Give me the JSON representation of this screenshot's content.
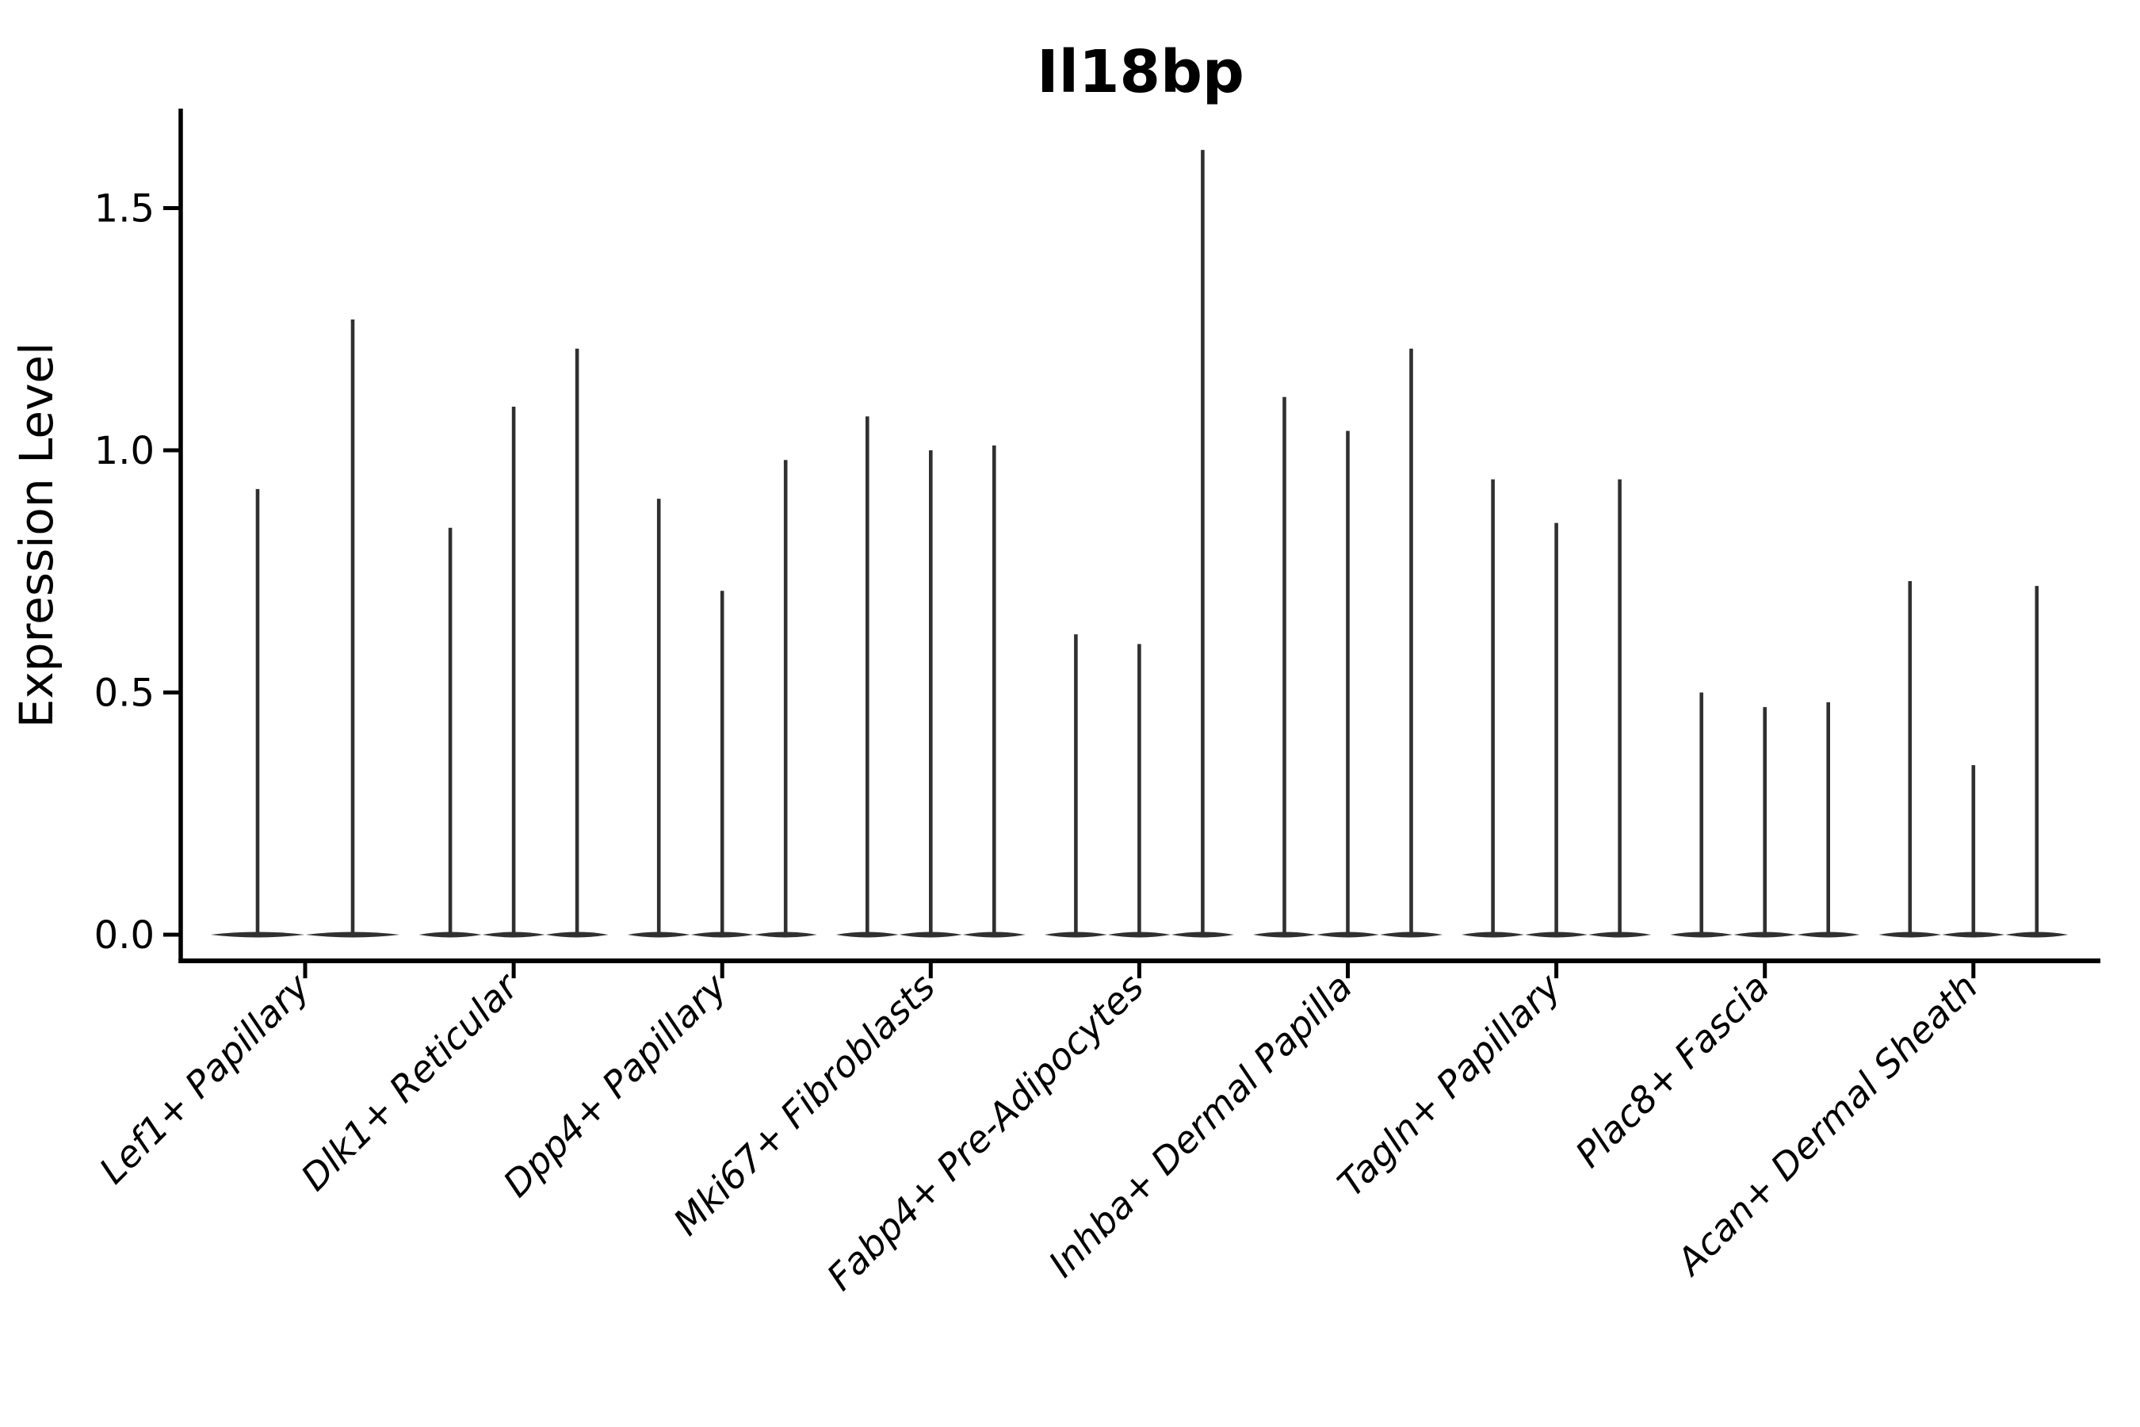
{
  "chart_data": {
    "type": "violin",
    "title": "Il18bp",
    "ylabel": "Expression Level",
    "xlabel": "",
    "categories": [
      "Lef1+ Papillary",
      "Dlk1+ Reticular",
      "Dpp4+ Papillary",
      "Mki67+ Fibroblasts",
      "Fabp4+ Pre-Adipocytes",
      "Inhba+ Dermal Papilla",
      "Tagln+ Papillary",
      "Plac8+ Fascia",
      "Acan+ Dermal Sheath"
    ],
    "violins": [
      {
        "category": "Lef1+ Papillary",
        "spike_maxima": [
          0.92,
          1.27
        ]
      },
      {
        "category": "Dlk1+ Reticular",
        "spike_maxima": [
          0.84,
          1.09,
          1.21
        ]
      },
      {
        "category": "Dpp4+ Papillary",
        "spike_maxima": [
          0.9,
          0.71,
          0.98
        ]
      },
      {
        "category": "Mki67+ Fibroblasts",
        "spike_maxima": [
          1.07,
          1.0,
          1.01
        ]
      },
      {
        "category": "Fabp4+ Pre-Adipocytes",
        "spike_maxima": [
          0.62,
          0.6,
          1.62
        ]
      },
      {
        "category": "Inhba+ Dermal Papilla",
        "spike_maxima": [
          1.11,
          1.04,
          1.21
        ]
      },
      {
        "category": "Tagln+ Papillary",
        "spike_maxima": [
          0.94,
          0.85,
          0.94
        ]
      },
      {
        "category": "Plac8+ Fascia",
        "spike_maxima": [
          0.5,
          0.47,
          0.48
        ]
      },
      {
        "category": "Acan+ Dermal Sheath",
        "spike_maxima": [
          0.73,
          0.35,
          0.72
        ]
      }
    ],
    "baseline_value": 0.0,
    "ytick_labels": [
      "0.0",
      "0.5",
      "1.0",
      "1.5"
    ],
    "ytick_values": [
      0.0,
      0.5,
      1.0,
      1.5
    ],
    "ylim": [
      -0.054,
      1.705
    ],
    "legend": null,
    "grid": false,
    "colors": {
      "violin": "#303030",
      "axis": "#000000",
      "text": "#000000",
      "background": "#ffffff"
    }
  }
}
